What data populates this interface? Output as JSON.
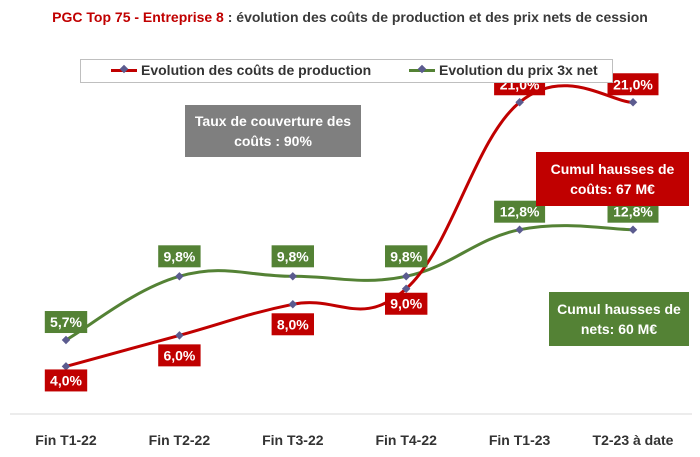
{
  "title": {
    "highlight": "PGC Top 75 - Entreprise 8",
    "rest": " : évolution des coûts de production et des prix nets de cession"
  },
  "annotations": {
    "taux": "Taux de couverture des coûts : 90%",
    "couts": "Cumul hausses de coûts: 67 M€",
    "nets": "Cumul hausses de nets: 60 M€"
  },
  "colors": {
    "costs": "#c00000",
    "prices": "#548235",
    "marker": "#5b5b8f",
    "taux_box": "#7f7f7f"
  },
  "chart_data": {
    "type": "line",
    "title": "PGC Top 75 - Entreprise 8 : évolution des coûts de production et des prix nets de cession",
    "categories": [
      "Fin T1-22",
      "Fin T2-22",
      "Fin T3-22",
      "Fin T4-22",
      "Fin T1-23",
      "T2-23 à date"
    ],
    "series": [
      {
        "name": "Evolution des coûts de production",
        "values": [
          4.0,
          6.0,
          8.0,
          9.0,
          21.0,
          21.0
        ],
        "labels": [
          "4,0%",
          "6,0%",
          "8,0%",
          "9,0%",
          "21,0%",
          "21,0%"
        ],
        "color": "#c00000"
      },
      {
        "name": "Evolution du prix 3x net",
        "values": [
          5.7,
          9.8,
          9.8,
          9.8,
          12.8,
          12.8
        ],
        "labels": [
          "5,7%",
          "9,8%",
          "9,8%",
          "9,8%",
          "12,8%",
          "12,8%"
        ],
        "color": "#548235"
      }
    ],
    "ylim": [
      0,
      24
    ],
    "grid": false,
    "legend": "top"
  }
}
